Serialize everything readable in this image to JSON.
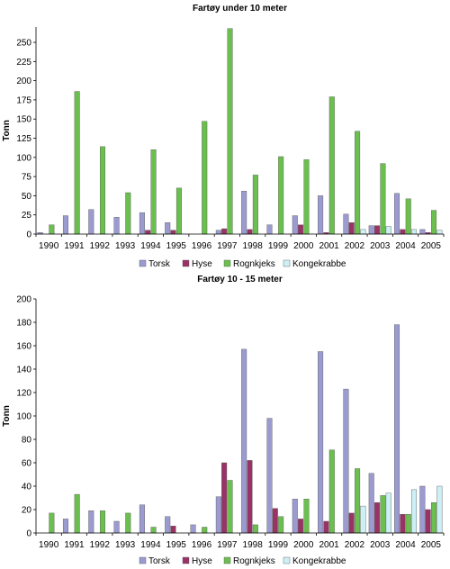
{
  "chart_data": [
    {
      "type": "bar",
      "title": "Fartøy under 10 meter",
      "ylabel": "Tonn",
      "xlabel": "",
      "ylim": [
        0,
        270
      ],
      "yticks": [
        0,
        25,
        50,
        75,
        100,
        125,
        150,
        175,
        200,
        225,
        250
      ],
      "grid": false,
      "legend": "bottom",
      "categories": [
        "1990",
        "1991",
        "1992",
        "1993",
        "1994",
        "1995",
        "1996",
        "1997",
        "1998",
        "1999",
        "2000",
        "2001",
        "2002",
        "2003",
        "2004",
        "2005"
      ],
      "series": [
        {
          "name": "Torsk",
          "color": "#9b9bd1",
          "values": [
            2,
            24,
            32,
            22,
            28,
            15,
            0,
            5,
            56,
            12,
            24,
            50,
            26,
            11,
            53,
            6
          ]
        },
        {
          "name": "Hyse",
          "color": "#993366",
          "values": [
            0,
            0,
            0,
            0,
            5,
            5,
            0,
            7,
            6,
            0,
            12,
            2,
            15,
            11,
            6,
            2
          ]
        },
        {
          "name": "Rognkjeks",
          "color": "#6bbf4e",
          "values": [
            12,
            186,
            114,
            54,
            110,
            60,
            147,
            268,
            77,
            101,
            97,
            179,
            134,
            92,
            46,
            31
          ]
        },
        {
          "name": "Kongekrabbe",
          "color": "#ccf0f5",
          "values": [
            0,
            0,
            0,
            0,
            0,
            0,
            0,
            0,
            0,
            0,
            0,
            0,
            6,
            10,
            6,
            5
          ]
        }
      ]
    },
    {
      "type": "bar",
      "title": "Fartøy 10 - 15 meter",
      "ylabel": "Tonn",
      "xlabel": "",
      "ylim": [
        0,
        200
      ],
      "yticks": [
        0,
        20,
        40,
        60,
        80,
        100,
        120,
        140,
        160,
        180,
        200
      ],
      "grid": false,
      "legend": "bottom",
      "categories": [
        "1990",
        "1991",
        "1992",
        "1993",
        "1994",
        "1995",
        "1996",
        "1997",
        "1998",
        "1999",
        "2000",
        "2001",
        "2002",
        "2003",
        "2004",
        "2005"
      ],
      "series": [
        {
          "name": "Torsk",
          "color": "#9b9bd1",
          "values": [
            0,
            12,
            19,
            10,
            24,
            14,
            7,
            31,
            157,
            98,
            29,
            155,
            123,
            51,
            178,
            40
          ]
        },
        {
          "name": "Hyse",
          "color": "#993366",
          "values": [
            0,
            0,
            0,
            0,
            0,
            6,
            0,
            60,
            62,
            21,
            12,
            10,
            17,
            26,
            16,
            20
          ]
        },
        {
          "name": "Rognkjeks",
          "color": "#6bbf4e",
          "values": [
            17,
            33,
            19,
            17,
            5,
            0,
            5,
            45,
            7,
            14,
            29,
            71,
            55,
            32,
            16,
            26
          ]
        },
        {
          "name": "Kongekrabbe",
          "color": "#ccf0f5",
          "values": [
            0,
            0,
            0,
            0,
            0,
            0,
            0,
            0,
            0,
            0,
            0,
            0,
            23,
            34,
            37,
            40
          ]
        }
      ]
    }
  ]
}
